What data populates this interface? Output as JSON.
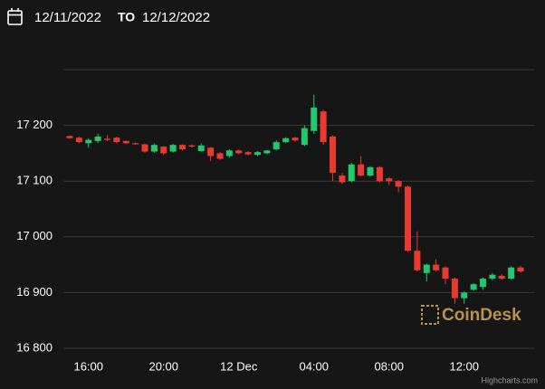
{
  "header": {
    "from": "12/11/2022",
    "separator": "TO",
    "to": "12/12/2022"
  },
  "chart_data": {
    "type": "candlestick",
    "categories": [
      null,
      null,
      "16:00",
      null,
      null,
      null,
      null,
      null,
      null,
      null,
      "20:00",
      null,
      null,
      null,
      null,
      null,
      null,
      null,
      "12 Dec",
      null,
      null,
      null,
      null,
      null,
      null,
      null,
      "04:00",
      null,
      null,
      null,
      null,
      null,
      null,
      null,
      "08:00",
      null,
      null,
      null,
      null,
      null,
      null,
      null,
      "12:00",
      null,
      null,
      null,
      null,
      null,
      null
    ],
    "open": [
      17181,
      17178,
      17168,
      17172,
      17176,
      17178,
      17172,
      17168,
      17166,
      17153,
      17162,
      17153,
      17165,
      17164,
      17154,
      17160,
      17150,
      17145,
      17155,
      17152,
      17147,
      17150,
      17157,
      17170,
      17178,
      17165,
      17190,
      17225,
      17180,
      17110,
      17100,
      17130,
      17110,
      17125,
      17105,
      17100,
      17090,
      16975,
      16935,
      16950,
      16945,
      16925,
      16890,
      16905,
      16910,
      16925,
      16930,
      16925,
      16945
    ],
    "high": [
      17182,
      17180,
      17177,
      17185,
      17183,
      17180,
      17173,
      17169,
      17167,
      17168,
      17163,
      17167,
      17166,
      17166,
      17168,
      17161,
      17152,
      17157,
      17157,
      17154,
      17154,
      17156,
      17173,
      17179,
      17179,
      17200,
      17255,
      17228,
      17182,
      17115,
      17133,
      17145,
      17127,
      17127,
      17107,
      17102,
      17092,
      17010,
      16952,
      16960,
      16947,
      16927,
      16902,
      16917,
      16927,
      16935,
      16933,
      16947,
      16948
    ],
    "low": [
      17176,
      17168,
      17160,
      17168,
      17172,
      17168,
      17167,
      17165,
      17151,
      17151,
      17147,
      17151,
      17155,
      17160,
      17152,
      17136,
      17138,
      17142,
      17148,
      17146,
      17145,
      17148,
      17155,
      17168,
      17171,
      17163,
      17185,
      17165,
      17100,
      17095,
      17098,
      17108,
      17108,
      17098,
      17093,
      17080,
      16973,
      16938,
      16920,
      16938,
      16915,
      16880,
      16880,
      16903,
      16905,
      16922,
      16923,
      16923,
      16936
    ],
    "close": [
      17177,
      17170,
      17174,
      17180,
      17174,
      17170,
      17168,
      17166,
      17153,
      17165,
      17150,
      17165,
      17157,
      17162,
      17164,
      17145,
      17140,
      17155,
      17150,
      17148,
      17152,
      17155,
      17170,
      17177,
      17173,
      17195,
      17232,
      17170,
      17115,
      17098,
      17130,
      17110,
      17125,
      17100,
      17100,
      17090,
      16975,
      16940,
      16950,
      16940,
      16925,
      16890,
      16900,
      16915,
      16925,
      16932,
      16925,
      16945,
      16938
    ],
    "up_color": "#21c86e",
    "down_color": "#ea3a30",
    "ylim": [
      16800,
      17300
    ],
    "yticks": [
      {
        "value": 16800,
        "label": "16 800"
      },
      {
        "value": 16900,
        "label": "16 900"
      },
      {
        "value": 17000,
        "label": "17 000"
      },
      {
        "value": 17100,
        "label": "17 100"
      },
      {
        "value": 17200,
        "label": "17 200"
      },
      17300
    ],
    "grid": true,
    "watermark": "CoinDesk",
    "credits": "Highcharts.com"
  }
}
